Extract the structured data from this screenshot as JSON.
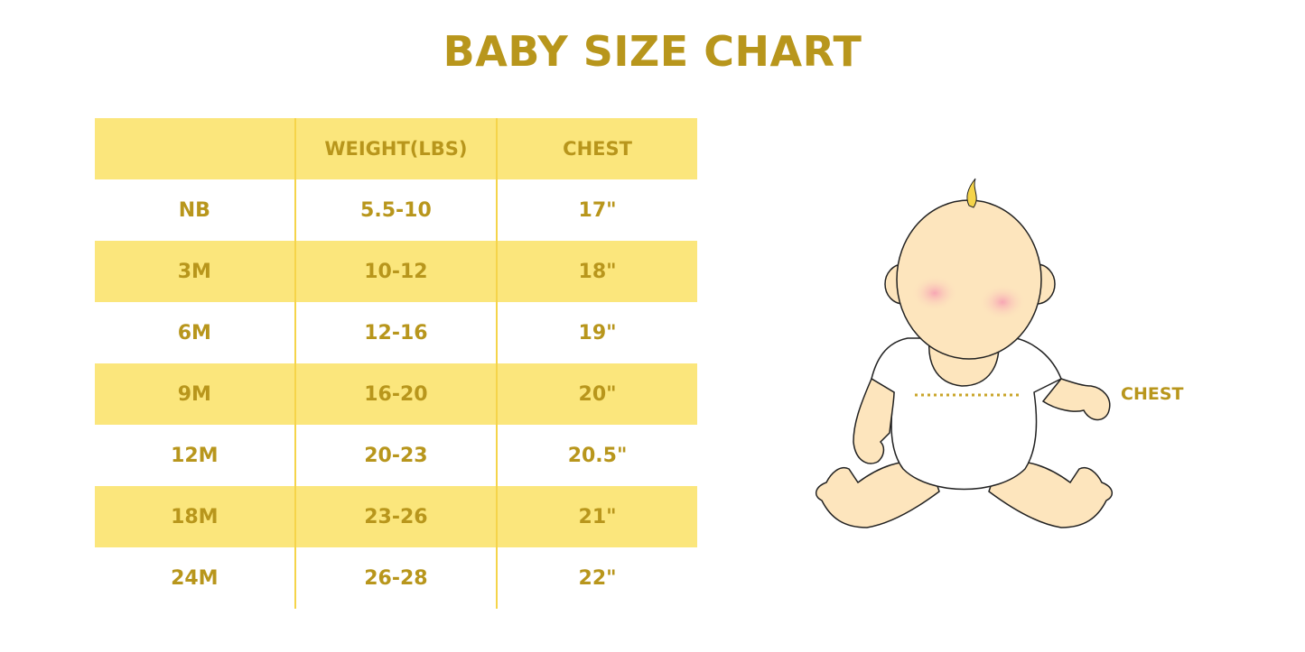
{
  "title": "BABY SIZE CHART",
  "table": {
    "headers": [
      "",
      "WEIGHT(LBS)",
      "CHEST"
    ],
    "rows": [
      [
        "NB",
        "5.5-10",
        "17\""
      ],
      [
        "3M",
        "10-12",
        "18\""
      ],
      [
        "6M",
        "12-16",
        "19\""
      ],
      [
        "9M",
        "16-20",
        "20\""
      ],
      [
        "12M",
        "20-23",
        "20.5\""
      ],
      [
        "18M",
        "23-26",
        "21\""
      ],
      [
        "24M",
        "26-28",
        "22\""
      ]
    ]
  },
  "illustration": {
    "label": "CHEST"
  },
  "colors": {
    "text": "#b8961c",
    "band": "#fbe67c",
    "skin": "#fde5bd"
  }
}
